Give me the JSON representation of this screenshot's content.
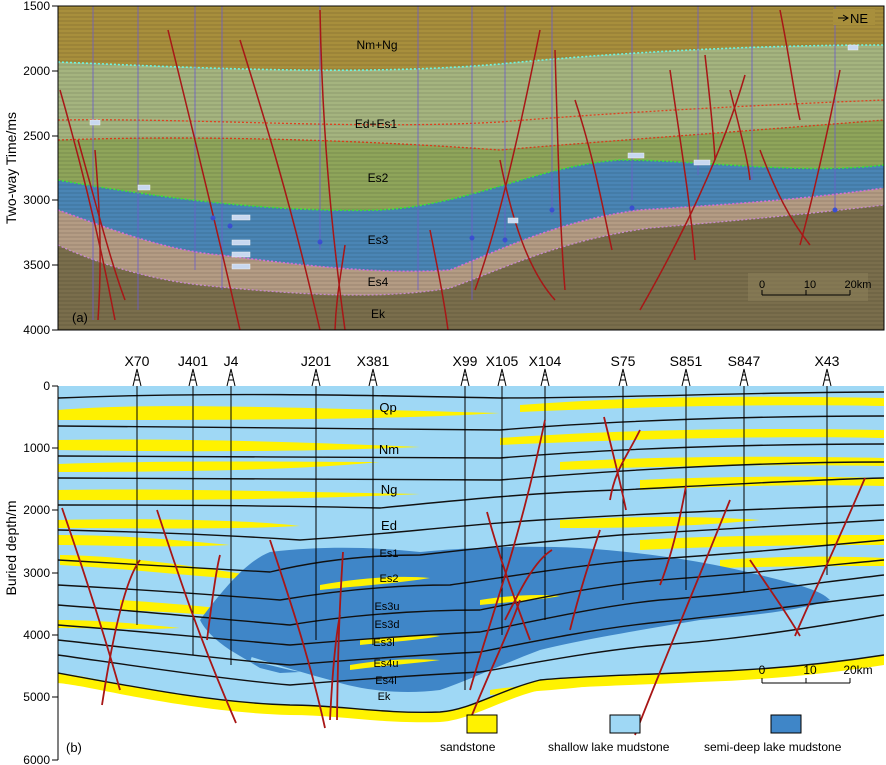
{
  "panel_a": {
    "tag": "(a)",
    "ylabel": "Two-way Time/ms",
    "yticks": [
      "1500",
      "2000",
      "2500",
      "3000",
      "3500",
      "4000"
    ],
    "direction": "NE",
    "units": [
      {
        "label": "Nm+Ng",
        "color": "#a88f3c"
      },
      {
        "label": "Ed+Es1",
        "color": "#9fb07a"
      },
      {
        "label": "Es2",
        "color": "#8fa55a"
      },
      {
        "label": "Es3",
        "color": "#4a85b5"
      },
      {
        "label": "Es4",
        "color": "#b59c86"
      },
      {
        "label": "Ek",
        "color": "#7a6e4c"
      }
    ],
    "scale": {
      "ticks": [
        "0",
        "10",
        "20km"
      ]
    }
  },
  "panel_b": {
    "tag": "(b)",
    "ylabel": "Buried  depth/m",
    "yticks": [
      "0",
      "1000",
      "2000",
      "3000",
      "4000",
      "5000",
      "6000"
    ],
    "wells": [
      "X70",
      "J401",
      "J4",
      "J201",
      "X381",
      "X99",
      "X105",
      "X104",
      "S75",
      "S851",
      "S847",
      "X43"
    ],
    "units": [
      "Qp",
      "Nm",
      "Ng",
      "Ed",
      "Es1",
      "Es2",
      "Es3u",
      "Es3d",
      "Es3l",
      "Es4u",
      "Es4l",
      "Ek"
    ],
    "scale": {
      "ticks": [
        "0",
        "10",
        "20km"
      ]
    },
    "legend": [
      {
        "label": "sandstone",
        "color": "#fff200"
      },
      {
        "label": "shallow lake mudstone",
        "color": "#9fd8f5"
      },
      {
        "label": "semi-deep lake mudstone",
        "color": "#3f86c8"
      }
    ]
  }
}
